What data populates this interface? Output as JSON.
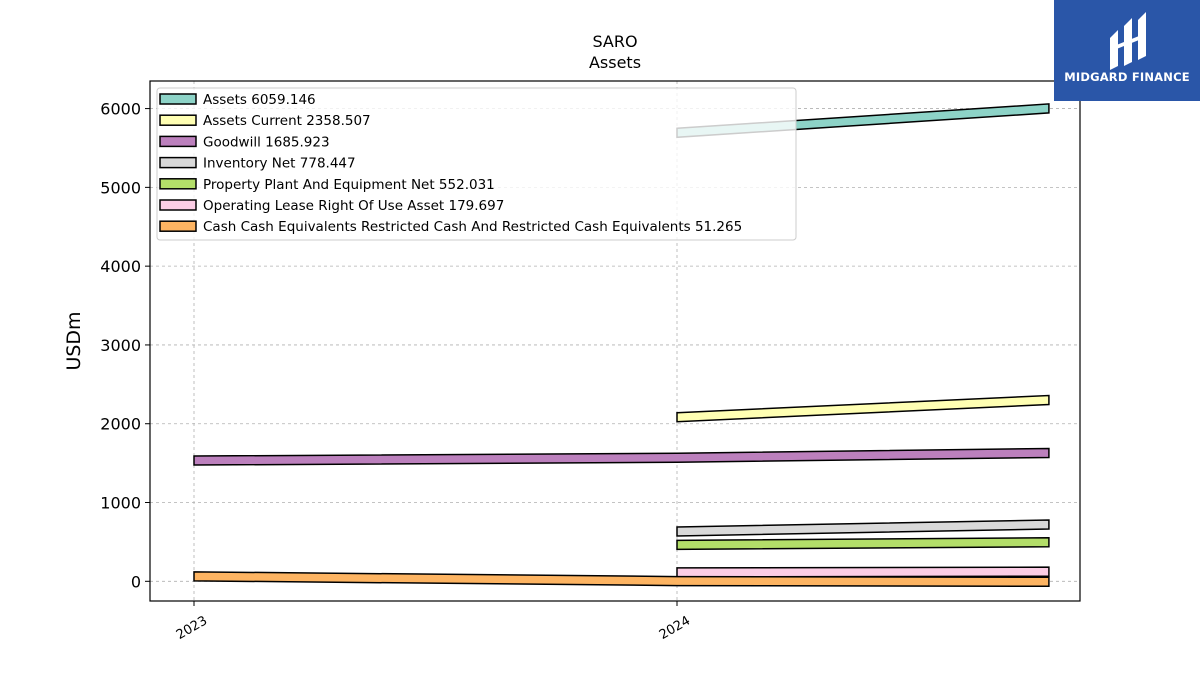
{
  "chart_data": {
    "type": "line",
    "title": "SARO",
    "subtitle": "Assets",
    "ylabel": "USDm",
    "xlabel": "",
    "x_categories": [
      "2023",
      "2024"
    ],
    "ylim": [
      -250,
      6350
    ],
    "yticks": [
      "0",
      "1000",
      "2000",
      "3000",
      "4000",
      "5000",
      "6000"
    ],
    "grid": true,
    "legend_position": "top-left",
    "series": [
      {
        "name": "Assets",
        "legend": "Assets  6059.146",
        "color": "#8dd3c7",
        "x": [
          1,
          1.77
        ],
        "values": [
          5750,
          6059.146
        ]
      },
      {
        "name": "Assets Current",
        "legend": "Assets Current  2358.507",
        "color": "#ffffb3",
        "x": [
          1,
          1.77
        ],
        "values": [
          2140,
          2358.507
        ]
      },
      {
        "name": "Goodwill",
        "legend": "Goodwill  1685.923",
        "color": "#bc80bd",
        "x": [
          0,
          1,
          1.77
        ],
        "values": [
          1590,
          1625,
          1685.923
        ]
      },
      {
        "name": "Inventory Net",
        "legend": "Inventory Net  778.447",
        "color": "#d9d9d9",
        "x": [
          1,
          1.77
        ],
        "values": [
          690,
          778.447
        ]
      },
      {
        "name": "Property Plant And Equipment Net",
        "legend": "Property Plant And Equipment Net  552.031",
        "color": "#b3de69",
        "x": [
          1,
          1.77
        ],
        "values": [
          520,
          552.031
        ]
      },
      {
        "name": "Operating Lease Right Of Use Asset",
        "legend": "Operating Lease Right Of Use Asset  179.697",
        "color": "#fccde5",
        "x": [
          1,
          1.77
        ],
        "values": [
          170,
          179.697
        ]
      },
      {
        "name": "Cash Cash Equivalents Restricted Cash And Restricted Cash Equivalents",
        "legend": "Cash Cash Equivalents Restricted Cash And Restricted Cash Equivalents  51.265",
        "color": "#fdb462",
        "x": [
          0,
          1,
          1.77
        ],
        "values": [
          120,
          60,
          51.265
        ]
      }
    ]
  },
  "logo": {
    "text": "MIDGARD FINANCE"
  }
}
